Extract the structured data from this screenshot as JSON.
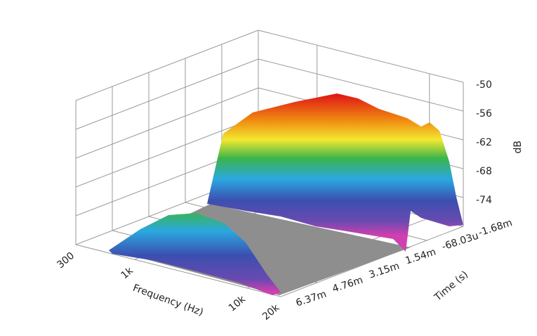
{
  "chart_data": {
    "type": "waterfall",
    "xlabel": "Frequency (Hz)",
    "ylabel": "Time (s)",
    "zlabel": "dB",
    "xscale": "log",
    "xlim": [
      300,
      20000
    ],
    "xticks": [
      300,
      {
        "value": 1000,
        "label": "1k"
      },
      {
        "value": 10000,
        "label": "10k"
      },
      {
        "value": 20000,
        "label": "20k"
      }
    ],
    "ylim": [
      -0.00168,
      0.00637
    ],
    "yticks": [
      {
        "value": -0.00168,
        "label": "-1.68m"
      },
      {
        "value": -6.803e-05,
        "label": "-68.03u"
      },
      {
        "value": 0.00154,
        "label": "1.54m"
      },
      {
        "value": 0.00315,
        "label": "3.15m"
      },
      {
        "value": 0.00476,
        "label": "4.76m"
      },
      {
        "value": 0.00637,
        "label": "6.37m"
      }
    ],
    "zlim": [
      -80,
      -50
    ],
    "zticks": [
      -50,
      -56,
      -62,
      -68,
      -74
    ],
    "grid": true
  }
}
